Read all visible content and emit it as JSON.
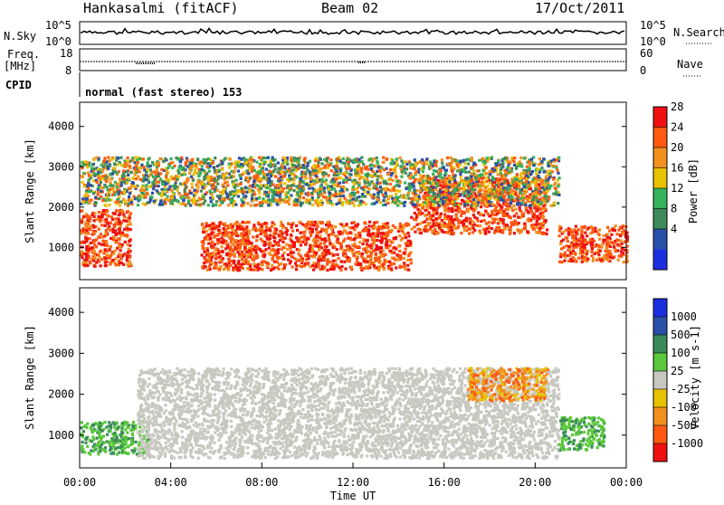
{
  "header": {
    "radar": "Hankasalmi (fitACF)",
    "beam": "Beam 02",
    "date": "17/Oct/2011"
  },
  "nsky_panel": {
    "left_label": "N.Sky",
    "right_label": "N.Search",
    "left_ticks": [
      "10^5",
      "10^0"
    ],
    "right_ticks": [
      "10^5",
      "10^0"
    ]
  },
  "freq_panel": {
    "left_label_line1": "Freq.",
    "left_label_line2": "[MHz]",
    "left_ticks": [
      "18",
      "8"
    ],
    "right_ticks": [
      "60",
      "0"
    ],
    "right_label": "Nave"
  },
  "cpid": {
    "label": "CPID",
    "value": "normal (fast stereo) 153"
  },
  "colors": {
    "power_scale": [
      "#1a2fe0",
      "#2a4fa8",
      "#3f8a5a",
      "#35b35a",
      "#e8c200",
      "#f2901e",
      "#ff5a10",
      "#ee1010"
    ],
    "velocity_scale": [
      "#ee1010",
      "#ff5a10",
      "#f2901e",
      "#e8c200",
      "#c8c8c0",
      "#5ac83a",
      "#3a8a5a",
      "#2a4fa8",
      "#1a2fe0"
    ],
    "ground_scatter": "#c8c8c0"
  },
  "chart_data": [
    {
      "type": "heatmap",
      "panel": "power",
      "ylabel": "Slant Range [km]",
      "yticks": [
        "1000",
        "2000",
        "3000",
        "4000"
      ],
      "ylim": [
        200,
        4600
      ],
      "colorbar_label": "Power [dB]",
      "colorbar_ticks": [
        "4",
        "8",
        "12",
        "16",
        "20",
        "24",
        "28"
      ],
      "regions": [
        {
          "t0": 0.0,
          "t1": 2.2,
          "r0": 500,
          "r1": 1900,
          "level": "high"
        },
        {
          "t0": 5.3,
          "t1": 14.5,
          "r0": 400,
          "r1": 1600,
          "level": "high"
        },
        {
          "t0": 14.5,
          "t1": 20.5,
          "r0": 1300,
          "r1": 2700,
          "level": "high"
        },
        {
          "t0": 21.0,
          "t1": 24.0,
          "r0": 600,
          "r1": 1500,
          "level": "high"
        },
        {
          "t0": 0.0,
          "t1": 21.0,
          "r0": 2000,
          "r1": 3200,
          "level": "mixed"
        }
      ]
    },
    {
      "type": "heatmap",
      "panel": "velocity",
      "ylabel": "Slant Range [km]",
      "xlabel": "Time UT",
      "xticks": [
        "00:00",
        "04:00",
        "08:00",
        "12:00",
        "16:00",
        "20:00",
        "00:00"
      ],
      "yticks": [
        "1000",
        "2000",
        "3000",
        "4000"
      ],
      "ylim": [
        200,
        4600
      ],
      "colorbar_label": "Velocity [m s-1]",
      "colorbar_ticks": [
        "1000",
        "500",
        "100",
        "25",
        "-25",
        "-100",
        "-500",
        "-1000"
      ],
      "regions": [
        {
          "t0": 0.0,
          "t1": 3.0,
          "r0": 500,
          "r1": 1300,
          "level": "positive"
        },
        {
          "t0": 2.5,
          "t1": 21.0,
          "r0": 400,
          "r1": 2600,
          "level": "ground"
        },
        {
          "t0": 17.0,
          "t1": 20.5,
          "r0": 1800,
          "r1": 2600,
          "level": "negative"
        },
        {
          "t0": 21.0,
          "t1": 23.0,
          "r0": 600,
          "r1": 1400,
          "level": "positive"
        }
      ]
    }
  ]
}
